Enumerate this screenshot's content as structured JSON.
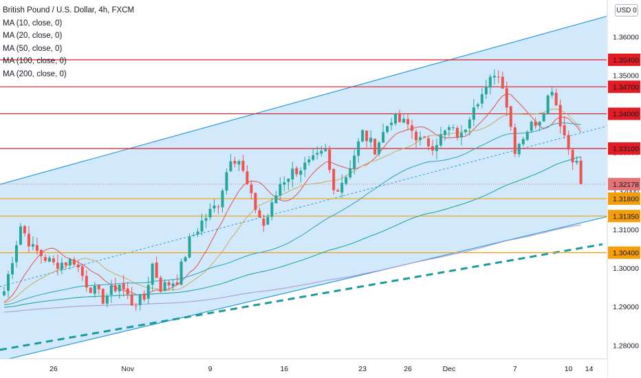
{
  "legend": {
    "title": "British Pound / U.S. Dollar, 4h, FXCM",
    "ma": [
      "MA (10, close, 0)",
      "MA (20, close, 0)",
      "MA (50, close, 0)",
      "MA (100, close, 0)",
      "MA (200, close, 0)"
    ]
  },
  "currency_button": "USD",
  "currency_menu_glyph": "0",
  "colors": {
    "channel_fill": "#d2e9fb",
    "channel_line": "#2e9ad6",
    "red_level": "#e31b23",
    "orange_level": "#f59e0b",
    "teal_dash": "#1b9a9a",
    "up": "#26a69a",
    "down": "#ef5350",
    "ma10": "#e05c5c",
    "ma20": "#c9b06a",
    "ma50": "#3aa6b9",
    "ma100": "#26a69a",
    "ma200": "#b19ad2",
    "current_price": "#e57373"
  },
  "chart_data": {
    "type": "candlestick",
    "symbol": "GBPUSD",
    "interval": "4h",
    "ylim": [
      1.2765,
      1.3695
    ],
    "y_ticks": [
      "1.28000",
      "1.29000",
      "1.30000",
      "1.31000",
      "1.32000",
      "1.33000",
      "1.34000",
      "1.35000",
      "1.36000"
    ],
    "x_ticks": [
      {
        "label": "26",
        "bar": 12
      },
      {
        "label": "Nov",
        "bar": 30
      },
      {
        "label": "9",
        "bar": 50
      },
      {
        "label": "16",
        "bar": 68
      },
      {
        "label": "23",
        "bar": 87
      },
      {
        "label": "26",
        "bar": 98
      },
      {
        "label": "Dec",
        "bar": 108
      },
      {
        "label": "7",
        "bar": 124
      },
      {
        "label": "10",
        "bar": 137
      },
      {
        "label": "14",
        "bar": 142
      }
    ],
    "bars": 141,
    "levels": [
      {
        "price": 1.354,
        "label": "1.35400",
        "kind": "red"
      },
      {
        "price": 1.347,
        "label": "1.34700",
        "kind": "red"
      },
      {
        "price": 1.34,
        "label": "1.34000",
        "kind": "red"
      },
      {
        "price": 1.331,
        "label": "1.33100",
        "kind": "red"
      },
      {
        "price": 1.318,
        "label": "1.31800",
        "kind": "orange"
      },
      {
        "price": 1.3135,
        "label": "1.31350",
        "kind": "orange"
      },
      {
        "price": 1.304,
        "label": "1.30400",
        "kind": "orange"
      }
    ],
    "current_price": {
      "price": 1.32178,
      "label": "1.32178"
    },
    "channel": {
      "upper": [
        {
          "bar": 0,
          "price": 1.322
        },
        {
          "bar": 147,
          "price": 1.3655
        }
      ],
      "lower": [
        {
          "bar": 0,
          "price": 1.2762
        },
        {
          "bar": 147,
          "price": 1.3135
        }
      ],
      "mid": [
        {
          "bar": 0,
          "price": 1.2955
        },
        {
          "bar": 147,
          "price": 1.337
        }
      ],
      "support_dash": [
        {
          "bar": 0,
          "price": 1.279
        },
        {
          "bar": 147,
          "price": 1.3065
        }
      ]
    },
    "anchors": [
      [
        0,
        1.294
      ],
      [
        4,
        1.311
      ],
      [
        7,
        1.305
      ],
      [
        12,
        1.301
      ],
      [
        17,
        1.302
      ],
      [
        20,
        1.296
      ],
      [
        24,
        1.292
      ],
      [
        28,
        1.296
      ],
      [
        31,
        1.291
      ],
      [
        34,
        1.292
      ],
      [
        36,
        1.301
      ],
      [
        38,
        1.295
      ],
      [
        42,
        1.297
      ],
      [
        45,
        1.307
      ],
      [
        48,
        1.312
      ],
      [
        52,
        1.317
      ],
      [
        55,
        1.329
      ],
      [
        57,
        1.328
      ],
      [
        60,
        1.318
      ],
      [
        63,
        1.311
      ],
      [
        65,
        1.316
      ],
      [
        67,
        1.322
      ],
      [
        70,
        1.325
      ],
      [
        74,
        1.327
      ],
      [
        78,
        1.33
      ],
      [
        80,
        1.32
      ],
      [
        83,
        1.324
      ],
      [
        87,
        1.335
      ],
      [
        90,
        1.331
      ],
      [
        94,
        1.339
      ],
      [
        98,
        1.337
      ],
      [
        101,
        1.333
      ],
      [
        104,
        1.332
      ],
      [
        108,
        1.336
      ],
      [
        111,
        1.334
      ],
      [
        114,
        1.343
      ],
      [
        117,
        1.346
      ],
      [
        119,
        1.351
      ],
      [
        121,
        1.348
      ],
      [
        124,
        1.331
      ],
      [
        127,
        1.336
      ],
      [
        130,
        1.339
      ],
      [
        133,
        1.347
      ],
      [
        135,
        1.338
      ],
      [
        137,
        1.331
      ],
      [
        139,
        1.327
      ],
      [
        140,
        1.318
      ],
      [
        141,
        1.3218
      ]
    ],
    "moving_averages": [
      {
        "name": "MA (10, close, 0)",
        "period": 10
      },
      {
        "name": "MA (20, close, 0)",
        "period": 20
      },
      {
        "name": "MA (50, close, 0)",
        "period": 50
      },
      {
        "name": "MA (100, close, 0)",
        "period": 100
      },
      {
        "name": "MA (200, close, 0)",
        "period": 200
      }
    ]
  }
}
